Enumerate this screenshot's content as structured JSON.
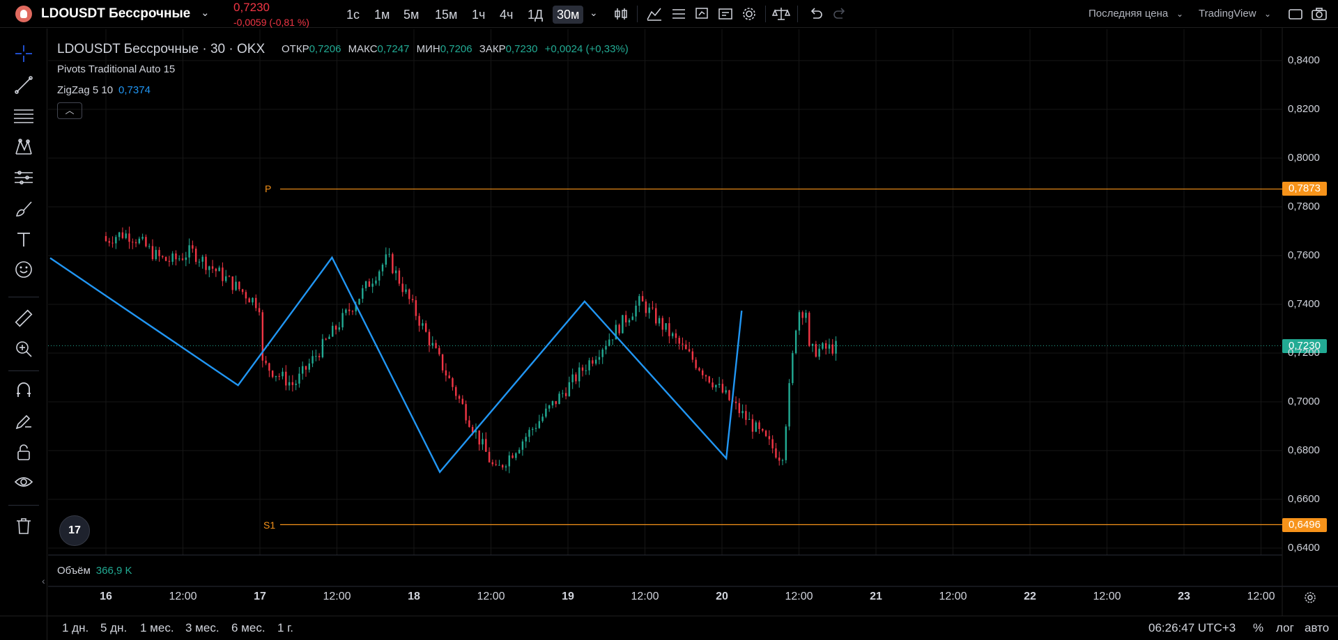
{
  "header": {
    "symbol": "LDOUSDT Бессрочные",
    "last_price": "0,7230",
    "change": "-0,0059 (-0,81 %)",
    "timeframes": [
      "1с",
      "1м",
      "5м",
      "15м",
      "1ч",
      "4ч",
      "1Д",
      "30м"
    ],
    "active_timeframe": "30м",
    "price_type": "Последняя цена",
    "provider": "TradingView"
  },
  "legend": {
    "symbol_line": "LDOUSDT Бессрочные · 30 · OKX",
    "open_key": "ОТКР",
    "open_val": "0,7206",
    "high_key": "МАКС",
    "high_val": "0,7247",
    "low_key": "МИН",
    "low_val": "0,7206",
    "close_key": "ЗАКР",
    "close_val": "0,7230",
    "change_val": "+0,0024 (+0,33%)",
    "indicator_pivots": "Pivots Traditional Auto 15",
    "indicator_zigzag": "ZigZag 5 10",
    "zigzag_val": "0,7374",
    "volume_label": "Объём",
    "volume_val": "366,9 K"
  },
  "pivots": {
    "p_label": "P",
    "p_value": "0,7873",
    "s1_label": "S1",
    "s1_value": "0,6496"
  },
  "current_price_label": "0,7230",
  "price_axis": [
    "0,8400",
    "0,8200",
    "0,8000",
    "0,7800",
    "0,7600",
    "0,7400",
    "0,7200",
    "0,7000",
    "0,6800",
    "0,6600",
    "0,6400"
  ],
  "time_axis": [
    {
      "label": "16",
      "bold": true
    },
    {
      "label": "12:00",
      "bold": false
    },
    {
      "label": "17",
      "bold": true
    },
    {
      "label": "12:00",
      "bold": false
    },
    {
      "label": "18",
      "bold": true
    },
    {
      "label": "12:00",
      "bold": false
    },
    {
      "label": "19",
      "bold": true
    },
    {
      "label": "12:00",
      "bold": false
    },
    {
      "label": "20",
      "bold": true
    },
    {
      "label": "12:00",
      "bold": false
    },
    {
      "label": "21",
      "bold": true
    },
    {
      "label": "12:00",
      "bold": false
    },
    {
      "label": "22",
      "bold": true
    },
    {
      "label": "12:00",
      "bold": false
    },
    {
      "label": "23",
      "bold": true
    },
    {
      "label": "12:00",
      "bold": false
    }
  ],
  "bottom": {
    "ranges": [
      "1 дн.",
      "5 дн.",
      "1 мес.",
      "3 мес.",
      "6 мес.",
      "1 г."
    ],
    "clock": "06:26:47 UTC+3",
    "percent": "%",
    "log": "лог",
    "auto": "авто"
  },
  "colors": {
    "up": "#22ab94",
    "down": "#f23645",
    "zigzag": "#2196f3",
    "pivot": "#f7931a",
    "current_price": "#22ab94"
  },
  "zigzag_points": [
    {
      "t": 0.0,
      "p": 0.759
    },
    {
      "t": 1.22,
      "p": 0.7068
    },
    {
      "t": 1.83,
      "p": 0.7592
    },
    {
      "t": 2.53,
      "p": 0.6712
    },
    {
      "t": 3.47,
      "p": 0.7412
    },
    {
      "t": 4.39,
      "p": 0.6768
    },
    {
      "t": 4.49,
      "p": 0.7374
    }
  ]
}
